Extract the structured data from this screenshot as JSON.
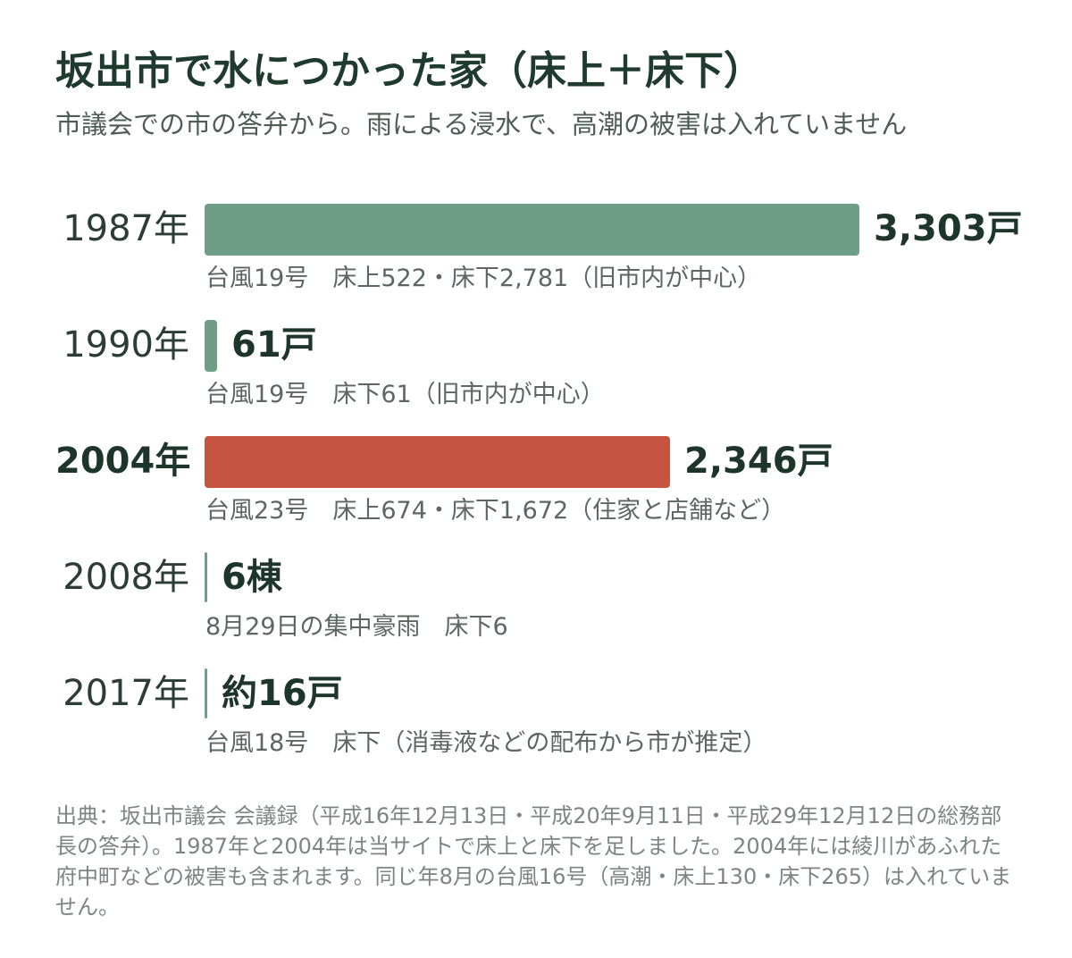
{
  "title": "坂出市で水につかった家（床上＋床下）",
  "subtitle": "市議会での市の答弁から。雨による浸水で、高潮の被害は入れていません",
  "chart_data": {
    "type": "bar",
    "orientation": "horizontal",
    "categories": [
      "1987年",
      "1990年",
      "2004年",
      "2008年",
      "2017年"
    ],
    "values": [
      3303,
      61,
      2346,
      6,
      16
    ],
    "value_labels": [
      "3,303戸",
      "61戸",
      "2,346戸",
      "6棟",
      "約16戸"
    ],
    "notes": [
      "台風19号　床上522・床下2,781（旧市内が中心）",
      "台風19号　床下61（旧市内が中心）",
      "台風23号　床上674・床下1,672（住家と店舗など）",
      "8月29日の集中豪雨　床下6",
      "台風18号　床下（消毒液などの配布から市が推定）"
    ],
    "highlight_index": 2,
    "colors": {
      "default": "#6e9e85",
      "highlight": "#c55540",
      "text": "#1e352b"
    }
  },
  "source": "出典：坂出市議会 会議録（平成16年12月13日・平成20年9月11日・平成29年12月12日の総務部長の答弁）。1987年と2004年は当サイトで床上と床下を足しました。2004年には綾川があふれた府中町などの被害も含まれます。同じ年8月の台風16号（高潮・床上130・床下265）は入れていません。"
}
